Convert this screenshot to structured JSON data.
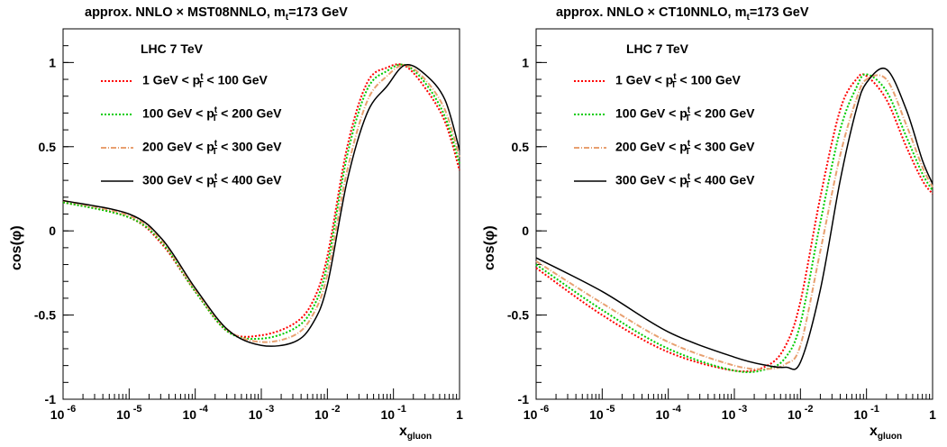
{
  "chart_data": [
    {
      "type": "line",
      "title": "approx. NNLO × MST08NNLO, m",
      "title_sub": "t",
      "title_tail": "=173 GeV",
      "annotation": "LHC 7 TeV",
      "xlabel": "x",
      "xlabel_sub": "gluon",
      "ylabel": "cos(φ)",
      "xscale": "log",
      "xlim": [
        1e-06,
        1
      ],
      "ylim": [
        -1,
        1.2
      ],
      "xticks": [
        {
          "base": "10",
          "exp": "-6",
          "value": 1e-06
        },
        {
          "base": "10",
          "exp": "-5",
          "value": 1e-05
        },
        {
          "base": "10",
          "exp": "-4",
          "value": 0.0001
        },
        {
          "base": "10",
          "exp": "-3",
          "value": 0.001
        },
        {
          "base": "10",
          "exp": "-2",
          "value": 0.01
        },
        {
          "base": "10",
          "exp": "-1",
          "value": 0.1
        },
        {
          "base": "1",
          "exp": "",
          "value": 1
        }
      ],
      "yticks": [
        {
          "label": "1",
          "value": 1
        },
        {
          "label": "0.5",
          "value": 0.5
        },
        {
          "label": "0",
          "value": 0
        },
        {
          "label": "-0.5",
          "value": -0.5
        },
        {
          "label": "-1",
          "value": -1
        }
      ],
      "legend_position": "upper-left",
      "series": [
        {
          "name": "1 GeV < p",
          "name_tail": "< 100 GeV",
          "color": "#ff0000",
          "dash": "dotted",
          "x": [
            1e-06,
            1e-05,
            3.16e-05,
            0.0001,
            0.000316,
            0.001,
            0.00316,
            0.006,
            0.01,
            0.02,
            0.04,
            0.08,
            0.15,
            0.3,
            0.6,
            1
          ],
          "y": [
            0.17,
            0.08,
            -0.08,
            -0.36,
            -0.6,
            -0.62,
            -0.55,
            -0.42,
            -0.15,
            0.5,
            0.88,
            0.97,
            0.98,
            0.85,
            0.65,
            0.36
          ]
        },
        {
          "name": "100 GeV < p",
          "name_tail": "< 200 GeV",
          "color": "#00cc00",
          "dash": "dotted",
          "x": [
            1e-06,
            1e-05,
            3.16e-05,
            0.0001,
            0.000316,
            0.001,
            0.00316,
            0.006,
            0.01,
            0.02,
            0.04,
            0.08,
            0.15,
            0.3,
            0.6,
            1
          ],
          "y": [
            0.17,
            0.08,
            -0.07,
            -0.36,
            -0.6,
            -0.64,
            -0.58,
            -0.46,
            -0.2,
            0.45,
            0.84,
            0.95,
            0.985,
            0.88,
            0.68,
            0.4
          ]
        },
        {
          "name": "200 GeV < p",
          "name_tail": "< 300 GeV",
          "color": "#e8a070",
          "dash": "dashdot",
          "x": [
            1e-06,
            1e-05,
            3.16e-05,
            0.0001,
            0.000316,
            0.001,
            0.00316,
            0.006,
            0.01,
            0.02,
            0.04,
            0.08,
            0.15,
            0.3,
            0.6,
            1
          ],
          "y": [
            0.18,
            0.09,
            -0.06,
            -0.35,
            -0.59,
            -0.66,
            -0.62,
            -0.5,
            -0.26,
            0.36,
            0.77,
            0.92,
            0.985,
            0.9,
            0.72,
            0.44
          ]
        },
        {
          "name": "300 GeV < p",
          "name_tail": "< 400 GeV",
          "color": "#000000",
          "dash": "solid",
          "x": [
            1e-06,
            1e-05,
            3.16e-05,
            0.0001,
            0.000316,
            0.001,
            0.00316,
            0.006,
            0.01,
            0.02,
            0.04,
            0.08,
            0.15,
            0.3,
            0.6,
            1
          ],
          "y": [
            0.18,
            0.1,
            -0.05,
            -0.34,
            -0.59,
            -0.68,
            -0.66,
            -0.55,
            -0.32,
            0.3,
            0.7,
            0.86,
            0.985,
            0.93,
            0.78,
            0.48
          ]
        }
      ]
    },
    {
      "type": "line",
      "title": "approx. NNLO × CT10NNLO, m",
      "title_sub": "t",
      "title_tail": "=173 GeV",
      "annotation": "LHC 7 TeV",
      "xlabel": "x",
      "xlabel_sub": "gluon",
      "ylabel": "cos(φ)",
      "xscale": "log",
      "xlim": [
        1e-06,
        1
      ],
      "ylim": [
        -1,
        1.2
      ],
      "xticks": [
        {
          "base": "10",
          "exp": "-6",
          "value": 1e-06
        },
        {
          "base": "10",
          "exp": "-5",
          "value": 1e-05
        },
        {
          "base": "10",
          "exp": "-4",
          "value": 0.0001
        },
        {
          "base": "10",
          "exp": "-3",
          "value": 0.001
        },
        {
          "base": "10",
          "exp": "-2",
          "value": 0.01
        },
        {
          "base": "10",
          "exp": "-1",
          "value": 0.1
        },
        {
          "base": "1",
          "exp": "",
          "value": 1
        }
      ],
      "yticks": [
        {
          "label": "1",
          "value": 1
        },
        {
          "label": "0.5",
          "value": 0.5
        },
        {
          "label": "0",
          "value": 0
        },
        {
          "label": "-0.5",
          "value": -0.5
        },
        {
          "label": "-1",
          "value": -1
        }
      ],
      "legend_position": "upper-left",
      "series": [
        {
          "name": "1 GeV < p",
          "name_tail": "< 100 GeV",
          "color": "#ff0000",
          "dash": "dotted",
          "x": [
            1e-06,
            1e-05,
            0.0001,
            0.001,
            0.00316,
            0.006,
            0.01,
            0.02,
            0.04,
            0.07,
            0.1,
            0.2,
            0.4,
            0.7,
            1
          ],
          "y": [
            -0.22,
            -0.5,
            -0.72,
            -0.83,
            -0.8,
            -0.68,
            -0.42,
            0.2,
            0.72,
            0.9,
            0.92,
            0.78,
            0.5,
            0.3,
            0.22
          ]
        },
        {
          "name": "100 GeV < p",
          "name_tail": "< 200 GeV",
          "color": "#00cc00",
          "dash": "dotted",
          "x": [
            1e-06,
            1e-05,
            0.0001,
            0.001,
            0.00316,
            0.006,
            0.01,
            0.02,
            0.04,
            0.07,
            0.1,
            0.2,
            0.4,
            0.7,
            1
          ],
          "y": [
            -0.2,
            -0.47,
            -0.7,
            -0.83,
            -0.82,
            -0.75,
            -0.55,
            0.05,
            0.6,
            0.85,
            0.93,
            0.83,
            0.56,
            0.34,
            0.24
          ]
        },
        {
          "name": "200 GeV < p",
          "name_tail": "< 300 GeV",
          "color": "#e8a070",
          "dash": "dashdot",
          "x": [
            1e-06,
            1e-05,
            0.0001,
            0.001,
            0.00316,
            0.006,
            0.01,
            0.02,
            0.04,
            0.07,
            0.1,
            0.2,
            0.4,
            0.7,
            1
          ],
          "y": [
            -0.18,
            -0.43,
            -0.66,
            -0.8,
            -0.82,
            -0.79,
            -0.68,
            -0.12,
            0.45,
            0.78,
            0.9,
            0.9,
            0.63,
            0.38,
            0.26
          ]
        },
        {
          "name": "300 GeV < p",
          "name_tail": "< 400 GeV",
          "color": "#000000",
          "dash": "solid",
          "x": [
            1e-06,
            1e-05,
            0.0001,
            0.001,
            0.00316,
            0.006,
            0.01,
            0.02,
            0.04,
            0.07,
            0.1,
            0.2,
            0.4,
            0.7,
            1
          ],
          "y": [
            -0.16,
            -0.36,
            -0.6,
            -0.75,
            -0.8,
            -0.81,
            -0.78,
            -0.35,
            0.3,
            0.72,
            0.88,
            0.96,
            0.72,
            0.42,
            0.28
          ]
        }
      ]
    }
  ],
  "legend_superscript": "t",
  "legend_subscript": "T"
}
